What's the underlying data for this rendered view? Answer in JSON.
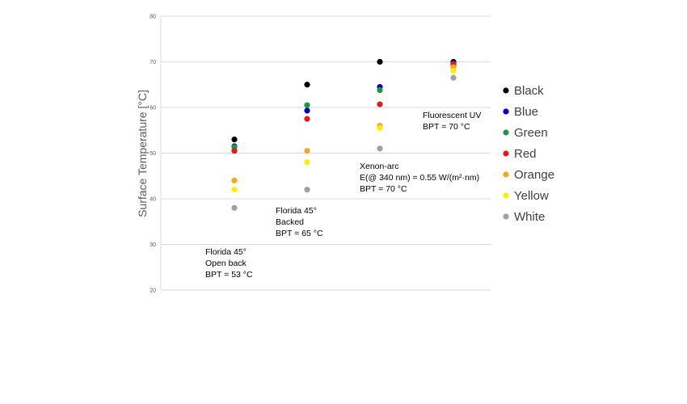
{
  "chart_data": {
    "type": "scatter",
    "ylabel": "Surface Temperature [°C]",
    "xlabel": "",
    "ylim": [
      20,
      80
    ],
    "yticks": [
      20,
      30,
      40,
      50,
      60,
      70,
      80
    ],
    "grid": true,
    "legend_position": "right",
    "categories": [
      {
        "lines": [
          "Florida 45°",
          "Open back",
          "BPT = 53 °C"
        ]
      },
      {
        "lines": [
          "Florida 45°",
          "Backed",
          "BPT = 65 °C"
        ]
      },
      {
        "lines": [
          "Xenon-arc",
          "E(@ 340 nm) = 0.55 W/(m²·nm)",
          "BPT = 70 °C"
        ]
      },
      {
        "lines": [
          "Fluorescent UV",
          "BPT = 70 °C"
        ]
      }
    ],
    "series": [
      {
        "name": "Black",
        "color": "#000000",
        "values": [
          53.0,
          65.0,
          70.0,
          70.0
        ]
      },
      {
        "name": "Blue",
        "color": "#0000cc",
        "values": [
          51.5,
          59.3,
          64.5,
          69.7
        ]
      },
      {
        "name": "Green",
        "color": "#1a9a3a",
        "values": [
          51.3,
          60.5,
          63.8,
          69.3
        ]
      },
      {
        "name": "Red",
        "color": "#e01b1b",
        "values": [
          50.5,
          57.5,
          60.7,
          69.5
        ]
      },
      {
        "name": "Orange",
        "color": "#f5a623",
        "values": [
          44.0,
          50.5,
          56.0,
          68.8
        ]
      },
      {
        "name": "Yellow",
        "color": "#ffee00",
        "values": [
          42.0,
          48.0,
          55.5,
          68.0
        ]
      },
      {
        "name": "White",
        "color": "#a0a0a0",
        "values": [
          38.0,
          42.0,
          51.0,
          66.5
        ]
      }
    ]
  }
}
